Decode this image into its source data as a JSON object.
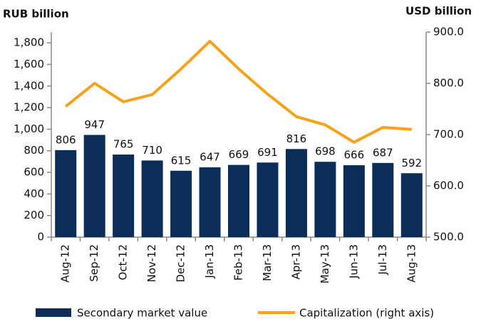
{
  "chart_data": {
    "type": "bar",
    "y_label": "RUB billion",
    "y2_label": "USD billion",
    "categories": [
      "Aug-12",
      "Sep-12",
      "Oct-12",
      "Nov-12",
      "Dec-12",
      "Jan-13",
      "Feb-13",
      "Mar-13",
      "Apr-13",
      "May-13",
      "Jun-13",
      "Jul-13",
      "Aug-13"
    ],
    "series": [
      {
        "name": "Secondary market value",
        "type": "bar",
        "color": "#0a2d5a",
        "axis": "y",
        "values": [
          806,
          947,
          765,
          710,
          615,
          647,
          669,
          691,
          816,
          698,
          666,
          687,
          592
        ]
      },
      {
        "name": "Capitalization (right axis)",
        "type": "line",
        "color": "#f5a31a",
        "axis": "y2",
        "values": [
          755,
          800,
          764,
          778,
          828,
          882,
          828,
          779,
          735,
          719,
          685,
          714,
          710
        ]
      }
    ],
    "ylim": [
      0,
      1900
    ],
    "yticks": [
      0,
      200,
      400,
      600,
      800,
      {
        "value": 1000,
        "label": "1,000"
      },
      {
        "value": 1200,
        "label": "1,200"
      },
      {
        "value": 1400,
        "label": "1,400"
      },
      {
        "value": 1600,
        "label": "1,600"
      },
      {
        "value": 1800,
        "label": "1,800"
      }
    ],
    "y2lim": [
      500,
      900
    ],
    "y2ticks": [
      {
        "value": 500,
        "label": "500.0"
      },
      {
        "value": 600,
        "label": "600.0"
      },
      {
        "value": 700,
        "label": "700.0"
      },
      {
        "value": 800,
        "label": "800.0"
      },
      {
        "value": 900,
        "label": "900.0"
      }
    ],
    "legend": "bottom"
  }
}
